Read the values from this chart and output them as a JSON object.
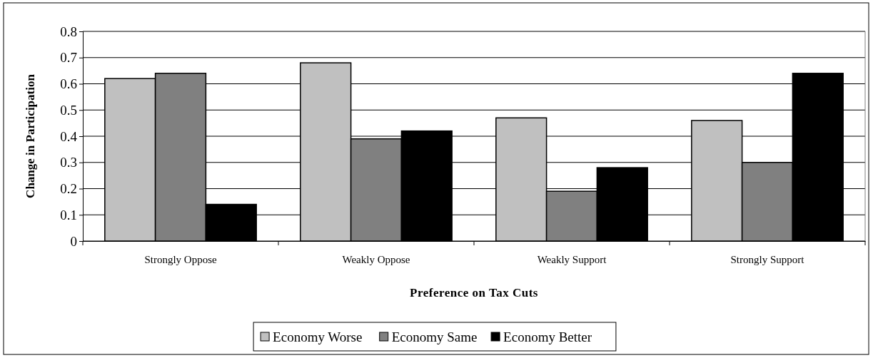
{
  "chart_data": {
    "type": "bar",
    "xlabel": "Preference on Tax Cuts",
    "ylabel": "Change in Participation",
    "categories": [
      "Strongly Oppose",
      "Weakly Oppose",
      "Weakly Support",
      "Strongly Support"
    ],
    "series": [
      {
        "name": "Economy Worse",
        "color": "#c0c0c0",
        "values": [
          0.62,
          0.68,
          0.47,
          0.46
        ]
      },
      {
        "name": "Economy Same",
        "color": "#808080",
        "values": [
          0.64,
          0.39,
          0.19,
          0.3
        ]
      },
      {
        "name": "Economy Better",
        "color": "#000000",
        "values": [
          0.14,
          0.42,
          0.28,
          0.64
        ]
      }
    ],
    "ylim": [
      0,
      0.8
    ],
    "yticks": [
      0,
      0.1,
      0.2,
      0.3,
      0.4,
      0.5,
      0.6,
      0.7,
      0.8
    ],
    "grid": "y",
    "legend": "bottom"
  }
}
